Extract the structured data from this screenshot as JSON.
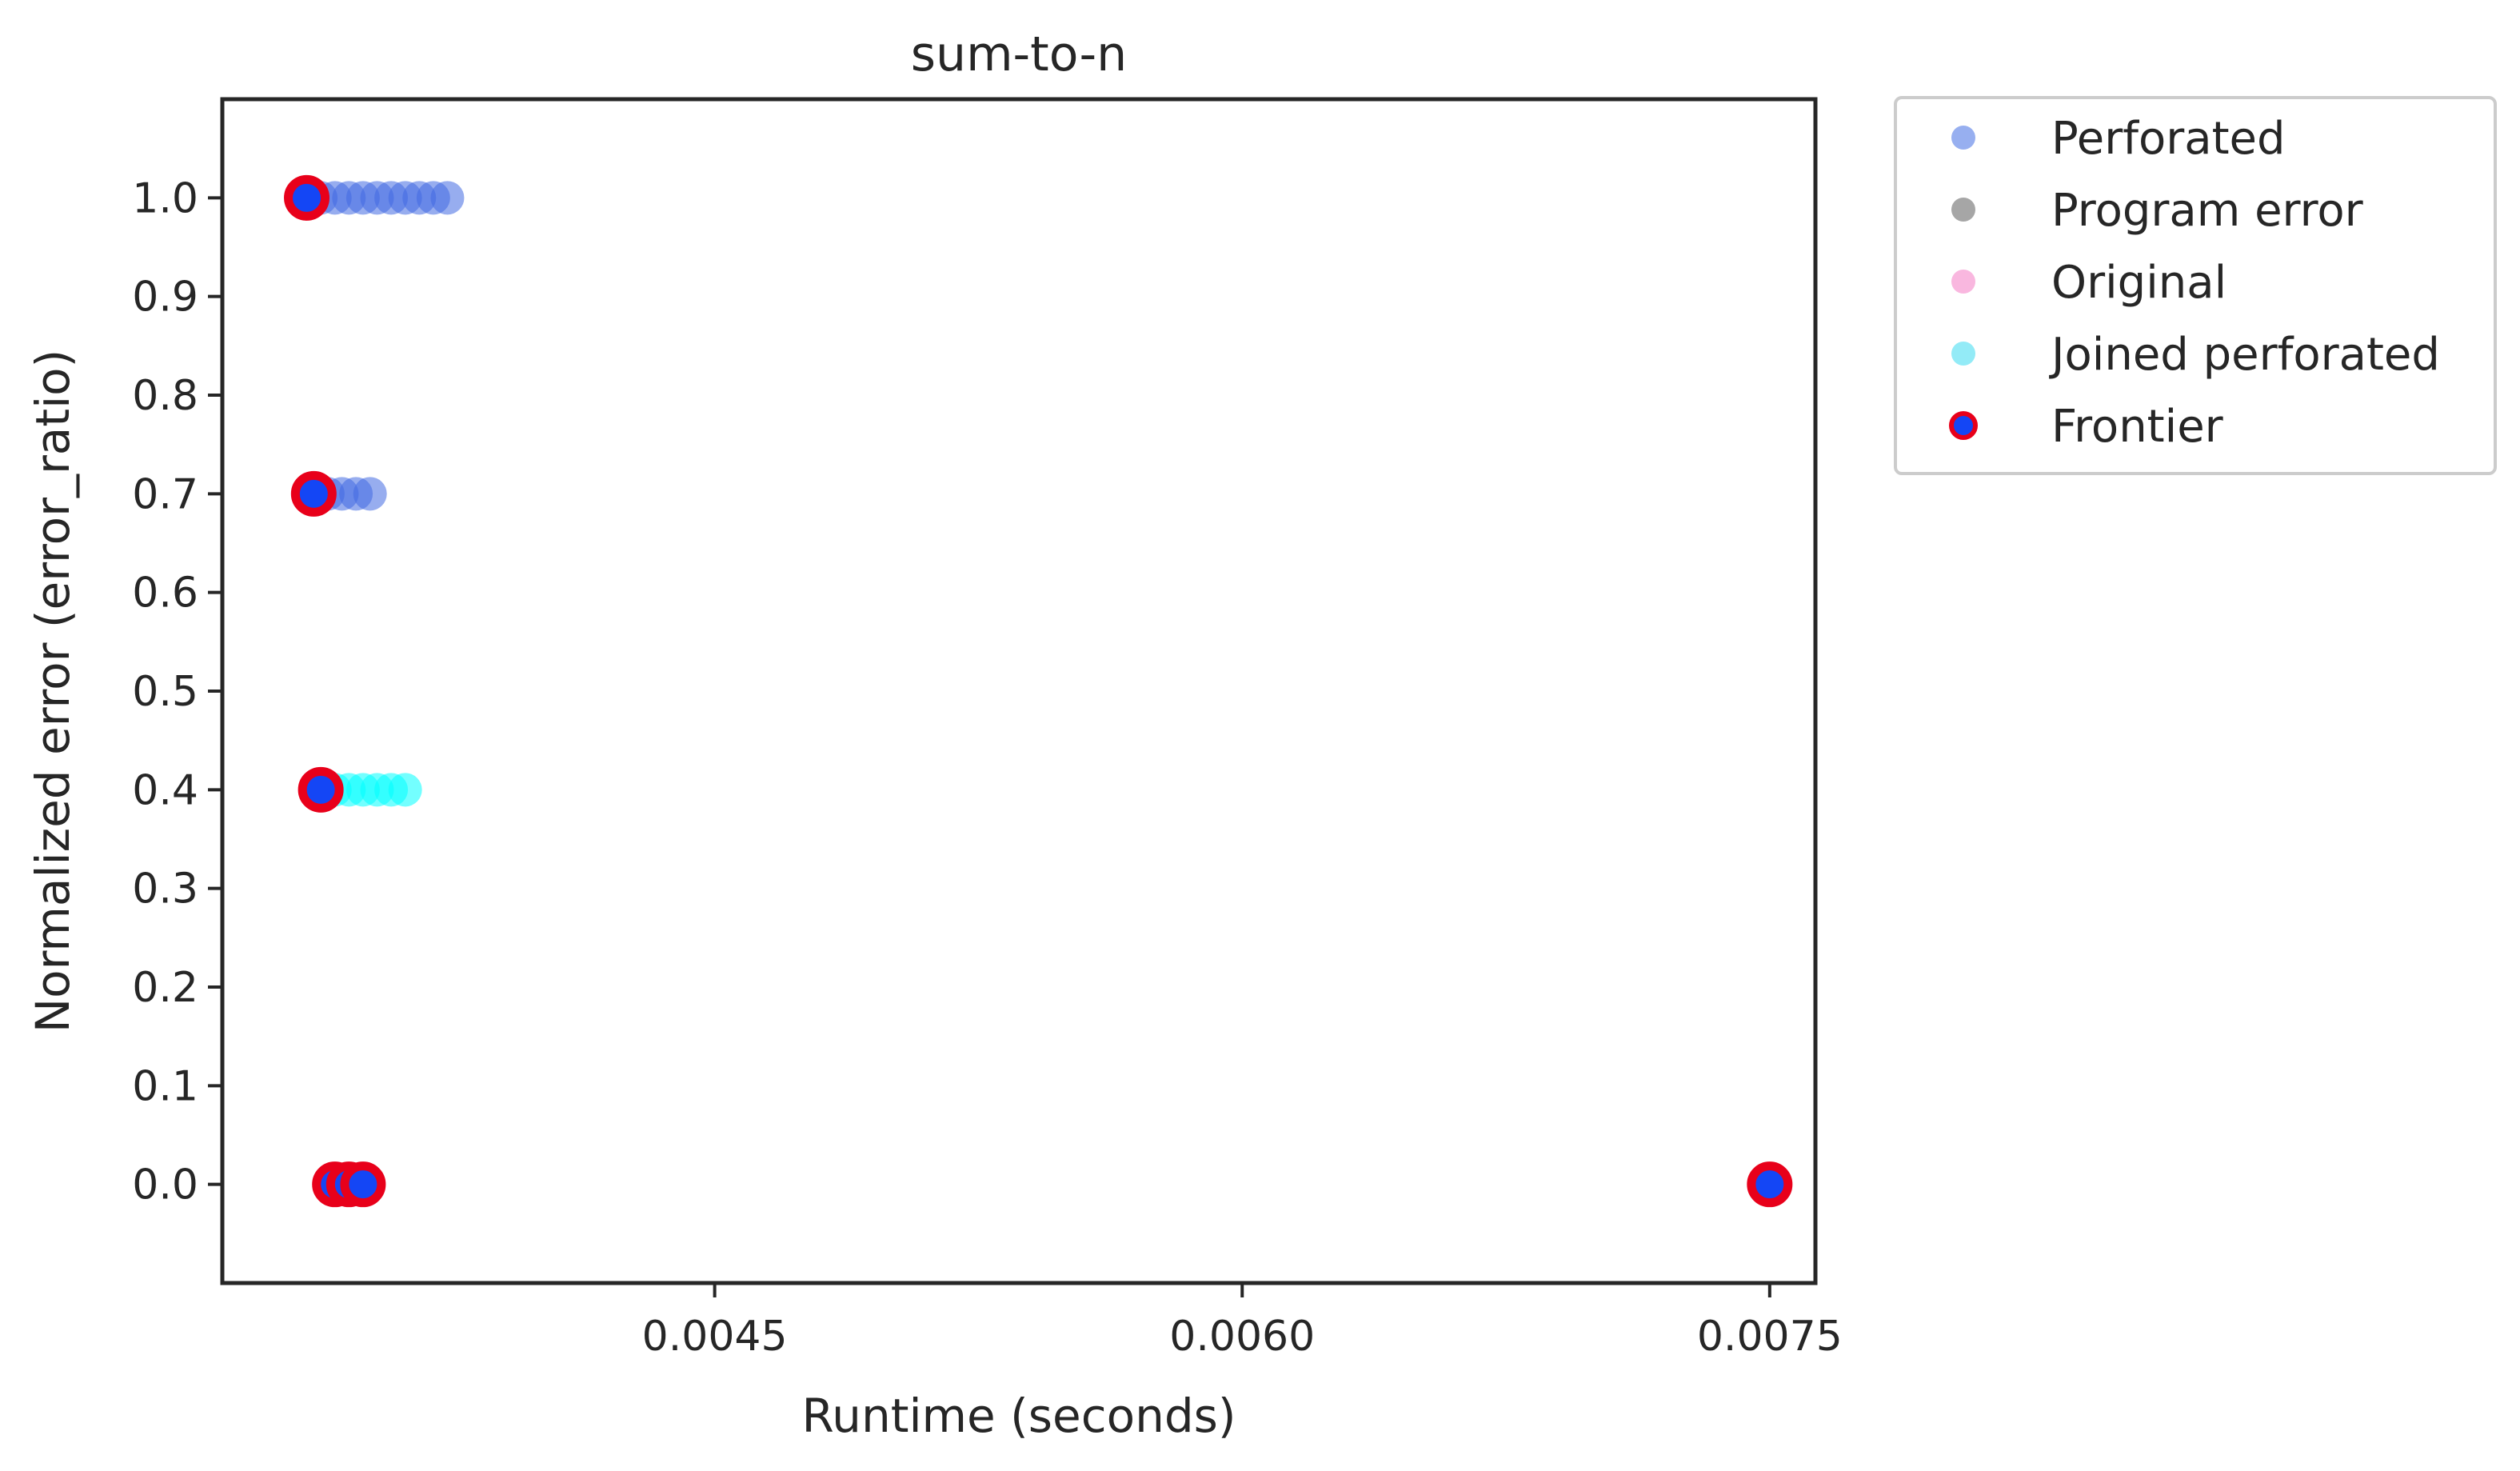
{
  "chart_data": {
    "type": "scatter",
    "title": "sum-to-n",
    "xlabel": "Runtime (seconds)",
    "ylabel": "Normalized error (error_ratio)",
    "xlim": [
      0.0031,
      0.00763
    ],
    "ylim": [
      -0.1,
      1.1
    ],
    "xticks": [
      0.0045,
      0.006,
      0.0075
    ],
    "xtick_labels": [
      "0.0045",
      "0.0060",
      "0.0075"
    ],
    "yticks": [
      0.0,
      0.1,
      0.2,
      0.3,
      0.4,
      0.5,
      0.6,
      0.7,
      0.8,
      0.9,
      1.0
    ],
    "ytick_labels": [
      "0.0",
      "0.1",
      "0.2",
      "0.3",
      "0.4",
      "0.5",
      "0.6",
      "0.7",
      "0.8",
      "0.9",
      "1.0"
    ],
    "grid": false,
    "legend_position": "outside-top-right",
    "series": [
      {
        "name": "Perforated",
        "color": "#4169e1",
        "marker_color": "#97aff0",
        "points": [
          {
            "x": 0.00334,
            "y": 1.0
          },
          {
            "x": 0.00338,
            "y": 1.0
          },
          {
            "x": 0.00342,
            "y": 1.0
          },
          {
            "x": 0.00346,
            "y": 1.0
          },
          {
            "x": 0.0035,
            "y": 1.0
          },
          {
            "x": 0.00354,
            "y": 1.0
          },
          {
            "x": 0.00358,
            "y": 1.0
          },
          {
            "x": 0.00362,
            "y": 1.0
          },
          {
            "x": 0.00366,
            "y": 1.0
          },
          {
            "x": 0.0037,
            "y": 1.0
          },
          {
            "x": 0.00374,
            "y": 1.0
          },
          {
            "x": 0.00336,
            "y": 0.7
          },
          {
            "x": 0.0034,
            "y": 0.7
          },
          {
            "x": 0.00344,
            "y": 0.7
          },
          {
            "x": 0.00348,
            "y": 0.7
          },
          {
            "x": 0.00352,
            "y": 0.7
          }
        ]
      },
      {
        "name": "Program error",
        "color": "#808080",
        "marker_color": "#a6a6a6",
        "points": []
      },
      {
        "name": "Original",
        "color": "#ff69b4",
        "marker_color": "#f9b7df",
        "points": [
          {
            "x": 0.00341,
            "y": 0.0
          },
          {
            "x": 0.0075,
            "y": 0.0
          }
        ]
      },
      {
        "name": "Joined perforated",
        "color": "#00ffff",
        "marker_color": "#93ebf7",
        "points": [
          {
            "x": 0.00338,
            "y": 0.4
          },
          {
            "x": 0.00342,
            "y": 0.4
          },
          {
            "x": 0.00346,
            "y": 0.4
          },
          {
            "x": 0.0035,
            "y": 0.4
          },
          {
            "x": 0.00354,
            "y": 0.4
          },
          {
            "x": 0.00358,
            "y": 0.4
          },
          {
            "x": 0.00362,
            "y": 0.4
          }
        ]
      },
      {
        "name": "Frontier",
        "color": "#e8001a",
        "marker_color": "#1446f5",
        "edge_color": "#e8001a",
        "points": [
          {
            "x": 0.00334,
            "y": 1.0
          },
          {
            "x": 0.00336,
            "y": 0.7
          },
          {
            "x": 0.00338,
            "y": 0.4
          },
          {
            "x": 0.00342,
            "y": 0.0
          },
          {
            "x": 0.00346,
            "y": 0.0
          },
          {
            "x": 0.0035,
            "y": 0.0
          },
          {
            "x": 0.0075,
            "y": 0.0
          }
        ]
      }
    ]
  }
}
